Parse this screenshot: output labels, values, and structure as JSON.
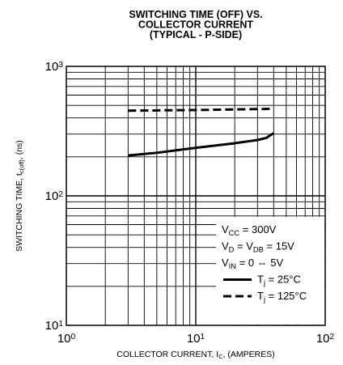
{
  "chart_data": {
    "type": "line",
    "title": [
      "SWITCHING TIME (OFF) VS.",
      "COLLECTOR CURRENT",
      "(TYPICAL - P-SIDE)"
    ],
    "xlabel": "COLLECTOR CURRENT, I",
    "xlabel_sub": "C",
    "xlabel_tail": ", (AMPERES)",
    "ylabel": "SWITCHING TIME, t",
    "ylabel_sub": "c(off)",
    "ylabel_tail": ", (ns)",
    "x_scale": "log",
    "y_scale": "log",
    "xlim": [
      1,
      100
    ],
    "ylim": [
      10,
      1000
    ],
    "grid": true,
    "x_ticks": [
      {
        "base": "10",
        "exp": "0"
      },
      {
        "base": "10",
        "exp": "1"
      },
      {
        "base": "10",
        "exp": "2"
      }
    ],
    "y_ticks": [
      {
        "base": "10",
        "exp": "1"
      },
      {
        "base": "10",
        "exp": "2"
      },
      {
        "base": "10",
        "exp": "3"
      }
    ],
    "conditions": [
      {
        "pre": "V",
        "sub": "CC",
        "post": " = 300V"
      },
      {
        "pre": "V",
        "sub": "D",
        "mid": " = V",
        "sub2": "DB",
        "post": " = 15V"
      },
      {
        "pre": "V",
        "sub": "IN",
        "post": " = 0 ⇔ 5V"
      }
    ],
    "legend_position": "bottom-right",
    "series": [
      {
        "name": "T",
        "name_sub": "j",
        "name_tail": " = 25°C",
        "style": "solid",
        "x": [
          3,
          5,
          10,
          20,
          30,
          35,
          40
        ],
        "y": [
          205,
          215,
          235,
          255,
          270,
          280,
          305
        ]
      },
      {
        "name": "T",
        "name_sub": "j",
        "name_tail": " = 125°C",
        "style": "dashed",
        "x": [
          3,
          10,
          20,
          40
        ],
        "y": [
          455,
          460,
          465,
          470
        ]
      }
    ]
  }
}
